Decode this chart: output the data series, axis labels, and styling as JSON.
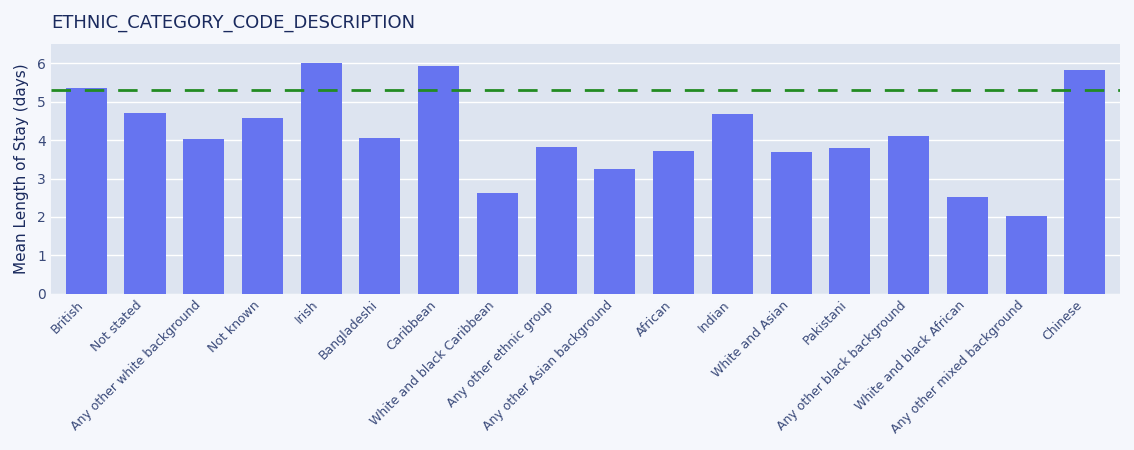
{
  "title": "ETHNIC_CATEGORY_CODE_DESCRIPTION",
  "ylabel": "Mean Length of Stay (days)",
  "categories": [
    "British",
    "Not stated",
    "Any other white background",
    "Not known",
    "Irish",
    "Bangladeshi",
    "Caribbean",
    "White and black Caribbean",
    "Any other ethnic group",
    "Any other Asian background",
    "African",
    "Indian",
    "White and Asian",
    "Pakistani",
    "Any other black background",
    "White and black African",
    "Any other mixed background",
    "Chinese"
  ],
  "values": [
    5.35,
    4.72,
    4.02,
    4.57,
    6.02,
    4.07,
    5.93,
    2.63,
    3.83,
    3.25,
    3.73,
    4.68,
    3.7,
    3.8,
    4.1,
    2.52,
    2.02,
    5.83
  ],
  "bar_color": "#6674f0",
  "dashed_line_y": 5.32,
  "dashed_line_color": "#228B22",
  "plot_bg_color": "#dde4f0",
  "fig_bg_color": "#f5f7fc",
  "ylim": [
    0,
    6.5
  ],
  "yticks": [
    0,
    1,
    2,
    3,
    4,
    5,
    6
  ],
  "title_color": "#1a2a5e",
  "title_fontsize": 13,
  "ylabel_color": "#1a2a5e",
  "ylabel_fontsize": 11,
  "tick_color": "#3a4a7a",
  "tick_fontsize": 9
}
